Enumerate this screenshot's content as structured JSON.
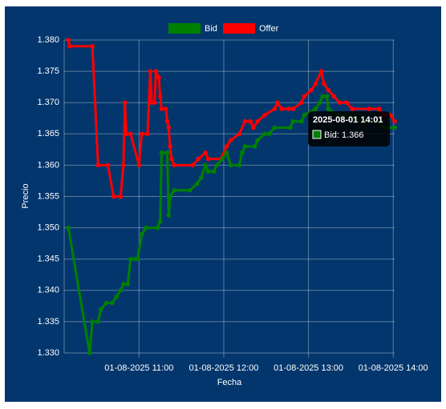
{
  "chart_data": {
    "type": "line",
    "xlabel": "Fecha",
    "ylabel": "Precio",
    "xlim": [
      "2025-08-01 10:07",
      "2025-08-01 14:01"
    ],
    "xticks": [
      {
        "value": "2025-08-01 11:00",
        "label": "01-08-2025 11:00"
      },
      {
        "value": "2025-08-01 12:00",
        "label": "01-08-2025 12:00"
      },
      {
        "value": "2025-08-01 13:00",
        "label": "01-08-2025 13:00"
      },
      {
        "value": "2025-08-01 14:00",
        "label": "01-08-2025 14:00"
      }
    ],
    "ylim": [
      1.33,
      1.38
    ],
    "yticks": [
      {
        "value": 1.33,
        "label": "1.330"
      },
      {
        "value": 1.335,
        "label": "1.335"
      },
      {
        "value": 1.34,
        "label": "1.340"
      },
      {
        "value": 1.345,
        "label": "1.345"
      },
      {
        "value": 1.35,
        "label": "1.350"
      },
      {
        "value": 1.355,
        "label": "1.355"
      },
      {
        "value": 1.36,
        "label": "1.360"
      },
      {
        "value": 1.365,
        "label": "1.365"
      },
      {
        "value": 1.37,
        "label": "1.370"
      },
      {
        "value": 1.375,
        "label": "1.375"
      },
      {
        "value": 1.38,
        "label": "1.380"
      }
    ],
    "grid": true,
    "legend": "top",
    "series": [
      {
        "name": "Bid",
        "color": "#008000",
        "x": [
          "2025-08-01 10:10",
          "2025-08-01 10:25",
          "2025-08-01 10:27",
          "2025-08-01 10:31",
          "2025-08-01 10:33",
          "2025-08-01 10:37",
          "2025-08-01 10:41",
          "2025-08-01 10:44",
          "2025-08-01 10:47",
          "2025-08-01 10:49",
          "2025-08-01 10:52",
          "2025-08-01 10:54",
          "2025-08-01 10:57",
          "2025-08-01 10:59",
          "2025-08-01 11:02",
          "2025-08-01 11:05",
          "2025-08-01 11:13",
          "2025-08-01 11:15",
          "2025-08-01 11:16",
          "2025-08-01 11:20",
          "2025-08-01 11:21",
          "2025-08-01 11:22",
          "2025-08-01 11:25",
          "2025-08-01 11:36",
          "2025-08-01 11:41",
          "2025-08-01 11:44",
          "2025-08-01 11:47",
          "2025-08-01 11:49",
          "2025-08-01 11:53",
          "2025-08-01 11:55",
          "2025-08-01 11:59",
          "2025-08-01 12:02",
          "2025-08-01 12:05",
          "2025-08-01 12:11",
          "2025-08-01 12:13",
          "2025-08-01 12:15",
          "2025-08-01 12:22",
          "2025-08-01 12:24",
          "2025-08-01 12:29",
          "2025-08-01 12:32",
          "2025-08-01 12:36",
          "2025-08-01 12:47",
          "2025-08-01 12:49",
          "2025-08-01 12:55",
          "2025-08-01 12:57",
          "2025-08-01 13:05",
          "2025-08-01 13:08",
          "2025-08-01 13:10",
          "2025-08-01 13:13",
          "2025-08-01 13:14",
          "2025-08-01 13:20",
          "2025-08-01 13:31",
          "2025-08-01 13:37",
          "2025-08-01 13:49",
          "2025-08-01 13:54",
          "2025-08-01 14:01"
        ],
        "values": [
          1.35,
          1.33,
          1.335,
          1.335,
          1.337,
          1.338,
          1.338,
          1.339,
          1.34,
          1.341,
          1.341,
          1.345,
          1.345,
          1.345,
          1.349,
          1.35,
          1.35,
          1.351,
          1.362,
          1.362,
          1.352,
          1.355,
          1.356,
          1.356,
          1.357,
          1.358,
          1.36,
          1.359,
          1.359,
          1.36,
          1.361,
          1.362,
          1.36,
          1.36,
          1.362,
          1.363,
          1.363,
          1.364,
          1.365,
          1.365,
          1.366,
          1.366,
          1.367,
          1.367,
          1.368,
          1.369,
          1.37,
          1.371,
          1.371,
          1.369,
          1.368,
          1.368,
          1.367,
          1.367,
          1.366,
          1.366
        ]
      },
      {
        "name": "Offer",
        "color": "#ff0000",
        "x": [
          "2025-08-01 10:10",
          "2025-08-01 10:11",
          "2025-08-01 10:27",
          "2025-08-01 10:31",
          "2025-08-01 10:38",
          "2025-08-01 10:42",
          "2025-08-01 10:47",
          "2025-08-01 10:49",
          "2025-08-01 10:50",
          "2025-08-01 10:51",
          "2025-08-01 10:54",
          "2025-08-01 11:00",
          "2025-08-01 11:02",
          "2025-08-01 11:06",
          "2025-08-01 11:08",
          "2025-08-01 11:09",
          "2025-08-01 11:11",
          "2025-08-01 11:12",
          "2025-08-01 11:14",
          "2025-08-01 11:15",
          "2025-08-01 11:16",
          "2025-08-01 11:19",
          "2025-08-01 11:20",
          "2025-08-01 11:21",
          "2025-08-01 11:22",
          "2025-08-01 11:23",
          "2025-08-01 11:25",
          "2025-08-01 11:38",
          "2025-08-01 11:42",
          "2025-08-01 11:47",
          "2025-08-01 11:49",
          "2025-08-01 11:58",
          "2025-08-01 12:02",
          "2025-08-01 12:05",
          "2025-08-01 12:11",
          "2025-08-01 12:15",
          "2025-08-01 12:19",
          "2025-08-01 12:21",
          "2025-08-01 12:24",
          "2025-08-01 12:29",
          "2025-08-01 12:36",
          "2025-08-01 12:38",
          "2025-08-01 12:41",
          "2025-08-01 12:46",
          "2025-08-01 12:49",
          "2025-08-01 12:55",
          "2025-08-01 12:57",
          "2025-08-01 13:02",
          "2025-08-01 13:05",
          "2025-08-01 13:09",
          "2025-08-01 13:11",
          "2025-08-01 13:14",
          "2025-08-01 13:18",
          "2025-08-01 13:22",
          "2025-08-01 13:27",
          "2025-08-01 13:31",
          "2025-08-01 13:43",
          "2025-08-01 13:50",
          "2025-08-01 13:53",
          "2025-08-01 13:58",
          "2025-08-01 14:01"
        ],
        "values": [
          1.38,
          1.379,
          1.379,
          1.36,
          1.36,
          1.355,
          1.355,
          1.36,
          1.37,
          1.365,
          1.365,
          1.36,
          1.365,
          1.365,
          1.375,
          1.37,
          1.37,
          1.375,
          1.374,
          1.371,
          1.369,
          1.369,
          1.367,
          1.366,
          1.363,
          1.361,
          1.36,
          1.36,
          1.361,
          1.362,
          1.361,
          1.361,
          1.363,
          1.364,
          1.365,
          1.367,
          1.367,
          1.366,
          1.367,
          1.368,
          1.369,
          1.37,
          1.369,
          1.369,
          1.369,
          1.37,
          1.371,
          1.372,
          1.373,
          1.375,
          1.373,
          1.372,
          1.371,
          1.37,
          1.37,
          1.369,
          1.369,
          1.369,
          1.368,
          1.368,
          1.367
        ]
      }
    ],
    "tooltip": {
      "title": "2025-08-01 14:01",
      "label": "Bid: 1.366"
    }
  }
}
